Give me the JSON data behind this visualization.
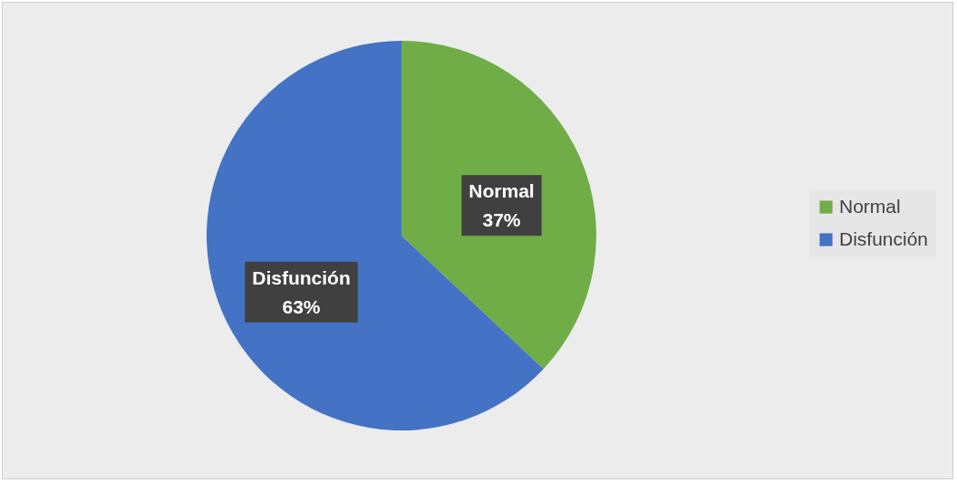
{
  "chart_data": {
    "type": "pie",
    "categories": [
      "Normal",
      "Disfunción"
    ],
    "values": [
      37,
      63
    ],
    "colors": [
      "#70ad47",
      "#4472c4"
    ],
    "value_labels": [
      "37%",
      "63%"
    ],
    "legend": "right"
  }
}
